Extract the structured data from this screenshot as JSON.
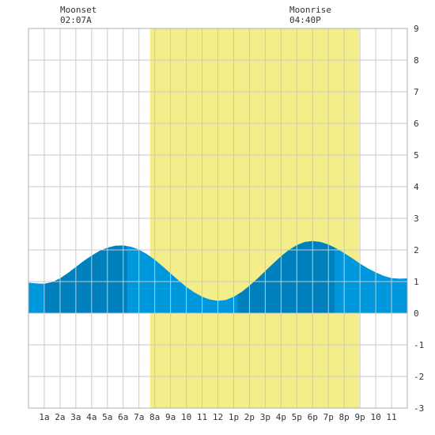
{
  "chart_data": {
    "type": "area",
    "x_unit": "hour of day",
    "xlim": [
      -1,
      23
    ],
    "ylim": [
      -3,
      9
    ],
    "y_ticks": [
      -3,
      -2,
      -1,
      0,
      1,
      2,
      3,
      4,
      5,
      6,
      7,
      8,
      9
    ],
    "x_tick_labels": [
      "1a",
      "2a",
      "3a",
      "4a",
      "5a",
      "6a",
      "7a",
      "8a",
      "9a",
      "10",
      "11",
      "12",
      "1p",
      "2p",
      "3p",
      "4p",
      "5p",
      "6p",
      "7p",
      "8p",
      "9p",
      "10",
      "11"
    ],
    "grid": true,
    "daylight": {
      "start_hour": 6.7,
      "end_hour": 19.95,
      "color": "#f4ee8a"
    },
    "tide_colors": {
      "light": "#0098dc",
      "dark": "#0081bd"
    },
    "dark_bands": [
      [
        0.0,
        5.25
      ],
      [
        12.25,
        18.4
      ]
    ],
    "tide_curve": {
      "x": [
        -1,
        -0.5,
        0.0,
        0.5,
        1.0,
        1.5,
        2.0,
        2.5,
        3.0,
        3.5,
        4.0,
        4.5,
        5.0,
        5.5,
        6.0,
        6.5,
        7.0,
        7.5,
        8.0,
        8.5,
        9.0,
        9.5,
        10.0,
        10.5,
        11.0,
        11.5,
        12.0,
        12.5,
        13.0,
        13.5,
        14.0,
        14.5,
        15.0,
        15.5,
        16.0,
        16.5,
        17.0,
        17.5,
        18.0,
        18.5,
        19.0,
        19.5,
        20.0,
        20.5,
        21.0,
        21.5,
        22.0,
        22.5,
        23.0
      ],
      "y": [
        0.97,
        0.94,
        0.93,
        0.98,
        1.1,
        1.27,
        1.46,
        1.65,
        1.82,
        1.97,
        2.07,
        2.13,
        2.14,
        2.1,
        2.01,
        1.87,
        1.69,
        1.48,
        1.26,
        1.04,
        0.83,
        0.66,
        0.52,
        0.43,
        0.39,
        0.42,
        0.52,
        0.67,
        0.87,
        1.09,
        1.33,
        1.57,
        1.8,
        2.0,
        2.15,
        2.25,
        2.28,
        2.25,
        2.17,
        2.05,
        1.9,
        1.74,
        1.57,
        1.42,
        1.29,
        1.18,
        1.11,
        1.09,
        1.1
      ]
    }
  },
  "moon": {
    "moonset_label": "Moonset",
    "moonset_time": "02:07A",
    "moonrise_label": "Moonrise",
    "moonrise_time": "04:40P"
  }
}
